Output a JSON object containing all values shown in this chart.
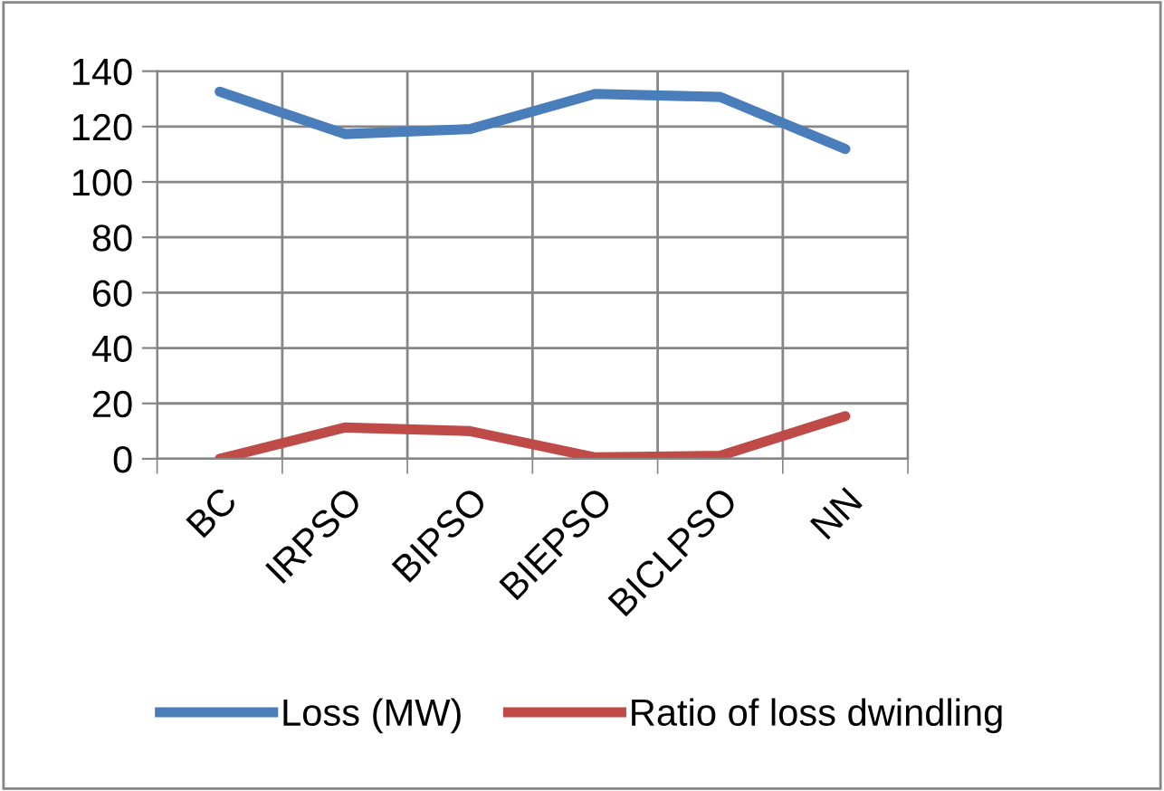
{
  "chart_data": {
    "type": "line",
    "categories": [
      "BC",
      "IRPSO",
      "BIPSO",
      "BIEPSO",
      "BICLPSO",
      "NN"
    ],
    "series": [
      {
        "name": "Loss (MW)",
        "color": "#4a7ebb",
        "values": [
          132.6,
          117.3,
          119.1,
          131.8,
          130.7,
          111.9
        ]
      },
      {
        "name": "Ratio of loss dwindling",
        "color": "#be4b48",
        "values": [
          0,
          11.3,
          10,
          0.5,
          1.1,
          15.4
        ]
      }
    ],
    "ylim": [
      0,
      140
    ],
    "yticks": [
      0,
      20,
      40,
      60,
      80,
      100,
      120,
      140
    ],
    "grid": true,
    "legend": "bottom",
    "marker": "none",
    "line_style": "solid"
  }
}
